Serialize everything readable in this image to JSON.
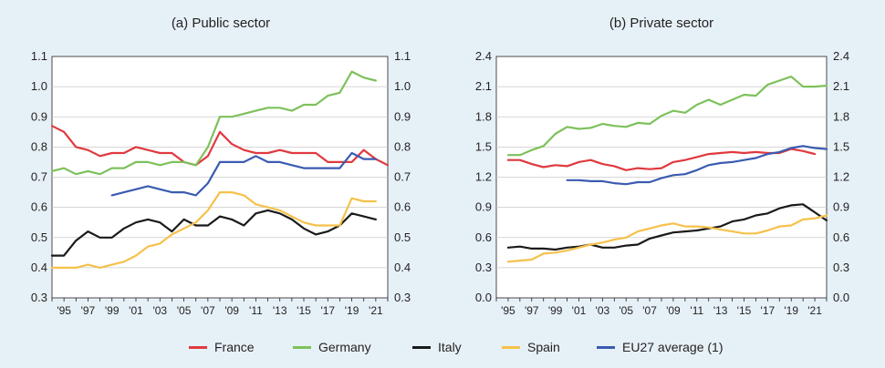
{
  "chart_data": [
    {
      "type": "line",
      "title": "(a) Public sector",
      "x": [
        1994,
        1995,
        1996,
        1997,
        1998,
        1999,
        2000,
        2001,
        2002,
        2003,
        2004,
        2005,
        2006,
        2007,
        2008,
        2009,
        2010,
        2011,
        2012,
        2013,
        2014,
        2015,
        2016,
        2017,
        2018,
        2019,
        2020,
        2021,
        2022
      ],
      "x_tick_labels": [
        "'95",
        "'97",
        "'99",
        "'01",
        "'03",
        "'05",
        "'07",
        "'09",
        "'11",
        "'13",
        "'15",
        "'17",
        "'19",
        "'21"
      ],
      "x_tick_values": [
        1995,
        1997,
        1999,
        2001,
        2003,
        2005,
        2007,
        2009,
        2011,
        2013,
        2015,
        2017,
        2019,
        2021
      ],
      "ylim": [
        0.3,
        1.1
      ],
      "y_ticks": [
        0.3,
        0.4,
        0.5,
        0.6,
        0.7,
        0.8,
        0.9,
        1.0,
        1.1
      ],
      "y_tick_labels": [
        "0.3",
        "0.4",
        "0.5",
        "0.6",
        "0.7",
        "0.8",
        "0.9",
        "1.0",
        "1.1"
      ],
      "grid": "horizontal",
      "series": [
        {
          "name": "France",
          "color": "#e0393e",
          "values": [
            0.87,
            0.85,
            0.8,
            0.79,
            0.77,
            0.78,
            0.78,
            0.8,
            0.79,
            0.78,
            0.78,
            0.75,
            0.74,
            0.77,
            0.85,
            0.81,
            0.79,
            0.78,
            0.78,
            0.79,
            0.78,
            0.78,
            0.78,
            0.75,
            0.75,
            0.75,
            0.79,
            0.76,
            0.74
          ]
        },
        {
          "name": "Germany",
          "color": "#7dc15b",
          "values": [
            0.72,
            0.73,
            0.71,
            0.72,
            0.71,
            0.73,
            0.73,
            0.75,
            0.75,
            0.74,
            0.75,
            0.75,
            0.74,
            0.8,
            0.9,
            0.9,
            0.91,
            0.92,
            0.93,
            0.93,
            0.92,
            0.94,
            0.94,
            0.97,
            0.98,
            1.05,
            1.03,
            1.02,
            null
          ]
        },
        {
          "name": "Italy",
          "color": "#1a1a1a",
          "values": [
            0.44,
            0.44,
            0.49,
            0.52,
            0.5,
            0.5,
            0.53,
            0.55,
            0.56,
            0.55,
            0.52,
            0.56,
            0.54,
            0.54,
            0.57,
            0.56,
            0.54,
            0.58,
            0.59,
            0.58,
            0.56,
            0.53,
            0.51,
            0.52,
            0.54,
            0.58,
            0.57,
            0.56,
            null
          ]
        },
        {
          "name": "Spain",
          "color": "#f6c14b",
          "values": [
            0.4,
            0.4,
            0.4,
            0.41,
            0.4,
            0.41,
            0.42,
            0.44,
            0.47,
            0.48,
            0.51,
            0.53,
            0.55,
            0.59,
            0.65,
            0.65,
            0.64,
            0.61,
            0.6,
            0.59,
            0.57,
            0.55,
            0.54,
            0.54,
            0.54,
            0.63,
            0.62,
            0.62,
            null
          ]
        },
        {
          "name": "EU27 average (1)",
          "color": "#3a5bb0",
          "values": [
            null,
            null,
            null,
            null,
            null,
            0.64,
            0.65,
            0.66,
            0.67,
            0.66,
            0.65,
            0.65,
            0.64,
            0.68,
            0.75,
            0.75,
            0.75,
            0.77,
            0.75,
            0.75,
            0.74,
            0.73,
            0.73,
            0.73,
            0.73,
            0.78,
            0.76,
            0.76,
            null
          ]
        }
      ]
    },
    {
      "type": "line",
      "title": "(b) Private sector",
      "x": [
        1994,
        1995,
        1996,
        1997,
        1998,
        1999,
        2000,
        2001,
        2002,
        2003,
        2004,
        2005,
        2006,
        2007,
        2008,
        2009,
        2010,
        2011,
        2012,
        2013,
        2014,
        2015,
        2016,
        2017,
        2018,
        2019,
        2020,
        2021,
        2022
      ],
      "x_tick_labels": [
        "'95",
        "'97",
        "'99",
        "'01",
        "'03",
        "'05",
        "'07",
        "'09",
        "'11",
        "'13",
        "'15",
        "'17",
        "'19",
        "'21"
      ],
      "x_tick_values": [
        1995,
        1997,
        1999,
        2001,
        2003,
        2005,
        2007,
        2009,
        2011,
        2013,
        2015,
        2017,
        2019,
        2021
      ],
      "ylim": [
        0.0,
        2.4
      ],
      "y_ticks": [
        0.0,
        0.3,
        0.6,
        0.9,
        1.2,
        1.5,
        1.8,
        2.1,
        2.4
      ],
      "y_tick_labels": [
        "0.0",
        "0.3",
        "0.6",
        "0.9",
        "1.2",
        "1.5",
        "1.8",
        "2.1",
        "2.4"
      ],
      "grid": "horizontal",
      "series": [
        {
          "name": "France",
          "color": "#e0393e",
          "values": [
            null,
            1.37,
            1.37,
            1.33,
            1.3,
            1.32,
            1.31,
            1.35,
            1.37,
            1.33,
            1.31,
            1.27,
            1.29,
            1.28,
            1.29,
            1.35,
            1.37,
            1.4,
            1.43,
            1.44,
            1.45,
            1.44,
            1.45,
            1.44,
            1.44,
            1.48,
            1.46,
            1.43,
            null
          ]
        },
        {
          "name": "Germany",
          "color": "#7dc15b",
          "values": [
            null,
            1.42,
            1.42,
            1.47,
            1.51,
            1.63,
            1.7,
            1.68,
            1.69,
            1.73,
            1.71,
            1.7,
            1.74,
            1.73,
            1.81,
            1.86,
            1.84,
            1.92,
            1.97,
            1.92,
            1.97,
            2.02,
            2.01,
            2.12,
            2.16,
            2.2,
            2.1,
            2.1,
            2.11
          ]
        },
        {
          "name": "Italy",
          "color": "#1a1a1a",
          "values": [
            null,
            0.5,
            0.51,
            0.49,
            0.49,
            0.48,
            0.5,
            0.51,
            0.53,
            0.5,
            0.5,
            0.52,
            0.53,
            0.59,
            0.62,
            0.65,
            0.66,
            0.67,
            0.69,
            0.71,
            0.76,
            0.78,
            0.82,
            0.84,
            0.89,
            0.92,
            0.93,
            0.85,
            0.77
          ]
        },
        {
          "name": "Spain",
          "color": "#f6c14b",
          "values": [
            null,
            0.36,
            0.37,
            0.38,
            0.44,
            0.45,
            0.47,
            0.5,
            0.53,
            0.55,
            0.58,
            0.6,
            0.66,
            0.69,
            0.72,
            0.74,
            0.71,
            0.71,
            0.7,
            0.68,
            0.66,
            0.64,
            0.64,
            0.67,
            0.71,
            0.72,
            0.78,
            0.79,
            0.82
          ]
        },
        {
          "name": "EU27 average (1)",
          "color": "#3a5bb0",
          "values": [
            null,
            null,
            null,
            null,
            null,
            null,
            1.17,
            1.17,
            1.16,
            1.16,
            1.14,
            1.13,
            1.15,
            1.15,
            1.19,
            1.22,
            1.23,
            1.27,
            1.32,
            1.34,
            1.35,
            1.37,
            1.39,
            1.43,
            1.45,
            1.49,
            1.51,
            1.49,
            1.48
          ]
        }
      ]
    }
  ],
  "legend": {
    "items": [
      {
        "label": "France",
        "color": "#e0393e"
      },
      {
        "label": "Germany",
        "color": "#7dc15b"
      },
      {
        "label": "Italy",
        "color": "#1a1a1a"
      },
      {
        "label": "Spain",
        "color": "#f6c14b"
      },
      {
        "label": "EU27 average (1)",
        "color": "#3a5bb0"
      }
    ]
  }
}
